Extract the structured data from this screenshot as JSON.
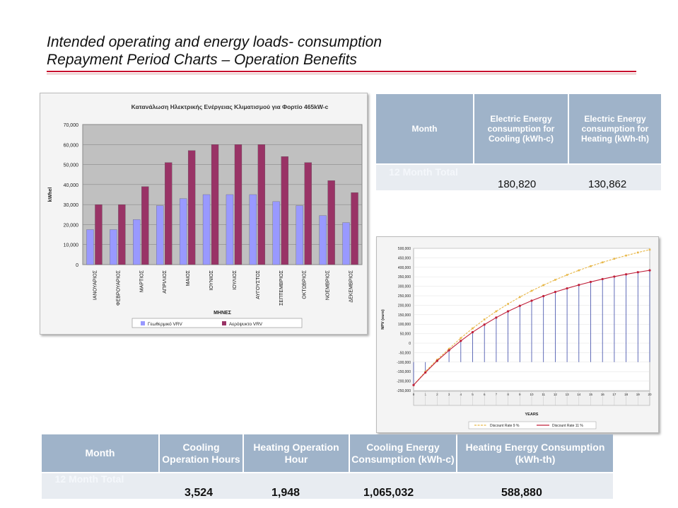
{
  "slide": {
    "title_line1": "Intended operating and energy loads- consumption",
    "title_line2": "Repayment Period Charts – Operation Benefits"
  },
  "top_table": {
    "headers": [
      "Month",
      "Electric Energy consumption for Cooling (kWh-c)",
      "Electric Energy consumption for Heating (kWh-th)"
    ],
    "row_label": "12 Month Total",
    "values": [
      "180,820",
      "130,862"
    ]
  },
  "bottom_table": {
    "headers": [
      "Month",
      "Cooling Operation Hours",
      "Heating Operation Hour",
      "Cooling Energy Consumption (kWh-c)",
      "Heating Energy Consumption (kWh-th)"
    ],
    "row_label": "12 Month Total",
    "values": [
      "3,524",
      "1,948",
      "1,065,032",
      "588,880"
    ]
  },
  "chart_data": [
    {
      "type": "bar",
      "title": "Κατανάλωση Ηλεκτρικής Ενέργειας Κλιματισμού για Φορτίο 465kW-c",
      "xlabel": "ΜΗΝΕΣ",
      "ylabel": "kWhel",
      "ylim": [
        0,
        70000
      ],
      "yticks": [
        "0",
        "10,000",
        "20,000",
        "30,000",
        "40,000",
        "50,000",
        "60,000",
        "70,000"
      ],
      "categories": [
        "ΙΑΝΟΥΑΡΙΟΣ",
        "ΦΕΒΡΟΥΑΡΙΟΣ",
        "ΜΑΡΤΙΟΣ",
        "ΑΠΡΙΛΙΟΣ",
        "ΜΑΙΟΣ",
        "ΙΟΥΝΙΟΣ",
        "ΙΟΥΛΙΟΣ",
        "ΑΥΓΟΥΣΤΟΣ",
        "ΣΕΠΤΕΜΒΡΙΟΣ",
        "ΟΚΤΩΒΡΙΟΣ",
        "ΝΟΕΜΒΡΙΟΣ",
        "ΔΕΚΕΜΒΡΙΟΣ"
      ],
      "series": [
        {
          "name": "Γεωθερμικό VRV",
          "color": "#9999ff",
          "values": [
            17500,
            17500,
            22500,
            29500,
            33000,
            35000,
            35000,
            35000,
            31500,
            29500,
            24500,
            21000
          ]
        },
        {
          "name": "Αερόψυκτο VRV",
          "color": "#993366",
          "values": [
            30000,
            30000,
            39000,
            51000,
            57000,
            60000,
            60000,
            60000,
            54000,
            51000,
            42000,
            36000
          ]
        }
      ],
      "grid": true,
      "legend": "bottom"
    },
    {
      "type": "line",
      "ylabel": "NPV (euro)",
      "xlabel": "YEARS",
      "ylim": [
        -250000,
        500000
      ],
      "yticks": [
        "500,000",
        "450,000",
        "400,000",
        "350,000",
        "300,000",
        "250,000",
        "200,000",
        "150,000",
        "100,000",
        "50,000",
        "0",
        "-50,000",
        "-100,000",
        "-150,000",
        "-200,000",
        "-250,000"
      ],
      "x": [
        0,
        1,
        2,
        3,
        4,
        5,
        6,
        7,
        8,
        9,
        10,
        11,
        12,
        13,
        14,
        15,
        16,
        17,
        18,
        19,
        20
      ],
      "series": [
        {
          "name": "Discount Rate 9 %",
          "color": "#e8b84a",
          "values": [
            -221000,
            -150000,
            -87000,
            -30000,
            27000,
            78000,
            125000,
            168000,
            207000,
            243000,
            276000,
            306000,
            334000,
            360000,
            384000,
            406000,
            426000,
            445000,
            462000,
            478000,
            493000
          ]
        },
        {
          "name": "Discount Rate 11 %",
          "color": "#c0203a",
          "values": [
            -221000,
            -155000,
            -93000,
            -38000,
            12000,
            58000,
            98000,
            135000,
            168000,
            197000,
            224000,
            248000,
            270000,
            289000,
            307000,
            323000,
            338000,
            351000,
            363000,
            374000,
            384000
          ]
        }
      ],
      "legend": "bottom"
    }
  ]
}
